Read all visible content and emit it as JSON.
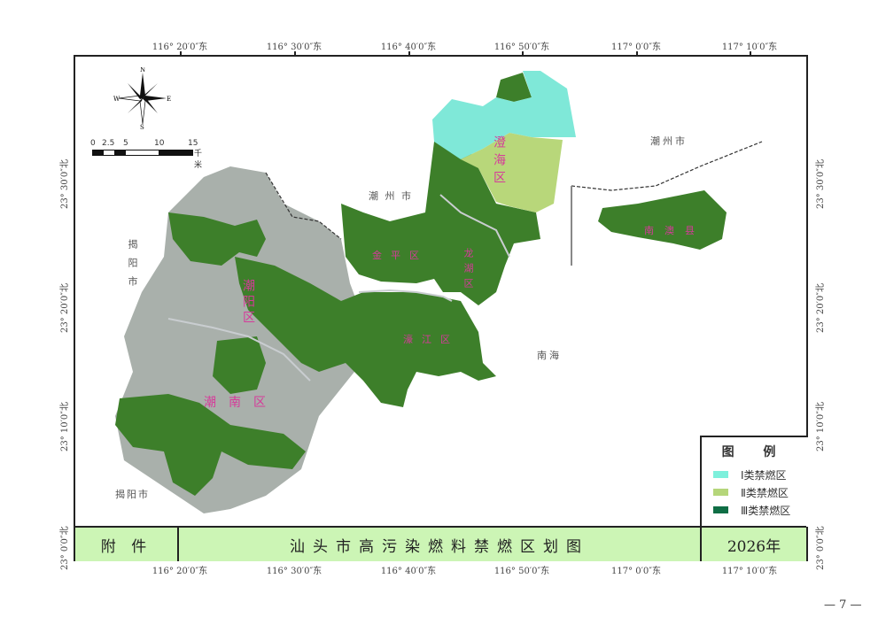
{
  "longitude_labels": [
    "116° 20′0″东",
    "116° 30′0″东",
    "116° 40′0″东",
    "116° 50′0″东",
    "117° 0′0″东",
    "117° 10′0″东"
  ],
  "latitude_labels": [
    "23° 30′0″北",
    "23° 20′0″北",
    "23° 10′0″北",
    "23° 0′0″北"
  ],
  "compass": {
    "n": "N",
    "s": "S",
    "e": "E",
    "w": "W"
  },
  "scale_bar": {
    "ticks": [
      "0",
      "2.5",
      "5",
      "10",
      "15"
    ],
    "unit": "千米"
  },
  "place_labels": {
    "chaozhou_top": "潮州市",
    "chaozhou_mid": "潮 州 市",
    "jieyang_left": "揭阳市",
    "jieyang_bottom": "揭阳市",
    "sea": "南海"
  },
  "districts": {
    "chenghai": "澄海区",
    "longhu": "龙湖区",
    "jinping": "金平区",
    "haojiang": "濠江区",
    "chaoyang": "潮阳区",
    "chaonan": "潮南区",
    "nanao": "南澳县"
  },
  "legend": {
    "title": "图 例",
    "items": [
      {
        "label": "Ⅰ类禁燃区",
        "color": "#7ef0dc"
      },
      {
        "label": "Ⅱ类禁燃区",
        "color": "#b5d67a"
      },
      {
        "label": "Ⅲ类禁燃区",
        "color": "#0f6e45"
      }
    ]
  },
  "bottom_bar": {
    "left": "附 件",
    "title": "汕头市高污染燃料禁燃区划图",
    "year": "2026年"
  },
  "colors": {
    "zone1": "#7fe8d8",
    "zone2": "#b8d77a",
    "zone3": "#3d7f2a",
    "urban": "#a9b0ab",
    "bar": "#ccf5b5"
  },
  "page_number": "— 7 —"
}
